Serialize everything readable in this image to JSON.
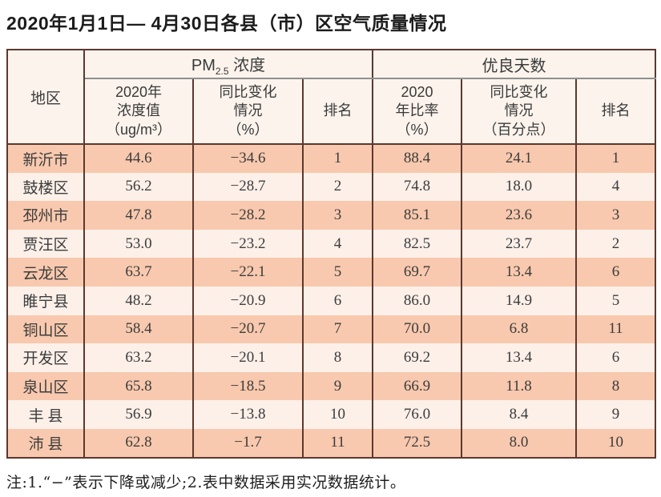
{
  "page": {
    "title": "2020年1月1日— 4月30日各县（市）区空气质量情况",
    "note": "注:1.“−”表示下降或减少;2.表中数据采用实况数据统计。"
  },
  "table": {
    "corner_header": "地区",
    "group_pm25": {
      "base": "PM",
      "sub": "2.5",
      "rest": " 浓度"
    },
    "group_good_days": "优良天数",
    "subheaders": {
      "pm_value": "2020年\n浓度值\n（ug/m³）",
      "pm_change": "同比变化\n情况\n（%）",
      "pm_rank": "排名",
      "good_rate": "2020\n年比率\n（%）",
      "good_change": "同比变化\n情况\n（百分点）",
      "good_rank": "排名"
    },
    "rows": [
      {
        "region": "新沂市",
        "pm_value": "44.6",
        "pm_change": "−34.6",
        "pm_rank": "1",
        "good_rate": "88.4",
        "good_change": "24.1",
        "good_rank": "1"
      },
      {
        "region": "鼓楼区",
        "pm_value": "56.2",
        "pm_change": "−28.7",
        "pm_rank": "2",
        "good_rate": "74.8",
        "good_change": "18.0",
        "good_rank": "4"
      },
      {
        "region": "邳州市",
        "pm_value": "47.8",
        "pm_change": "−28.2",
        "pm_rank": "3",
        "good_rate": "85.1",
        "good_change": "23.6",
        "good_rank": "3"
      },
      {
        "region": "贾汪区",
        "pm_value": "53.0",
        "pm_change": "−23.2",
        "pm_rank": "4",
        "good_rate": "82.5",
        "good_change": "23.7",
        "good_rank": "2"
      },
      {
        "region": "云龙区",
        "pm_value": "63.7",
        "pm_change": "−22.1",
        "pm_rank": "5",
        "good_rate": "69.7",
        "good_change": "13.4",
        "good_rank": "6"
      },
      {
        "region": "睢宁县",
        "pm_value": "48.2",
        "pm_change": "−20.9",
        "pm_rank": "6",
        "good_rate": "86.0",
        "good_change": "14.9",
        "good_rank": "5"
      },
      {
        "region": "铜山区",
        "pm_value": "58.4",
        "pm_change": "−20.7",
        "pm_rank": "7",
        "good_rate": "70.0",
        "good_change": "6.8",
        "good_rank": "11"
      },
      {
        "region": "开发区",
        "pm_value": "63.2",
        "pm_change": "−20.1",
        "pm_rank": "8",
        "good_rate": "69.2",
        "good_change": "13.4",
        "good_rank": "6"
      },
      {
        "region": "泉山区",
        "pm_value": "65.8",
        "pm_change": "−18.5",
        "pm_rank": "9",
        "good_rate": "66.9",
        "good_change": "11.8",
        "good_rank": "8"
      },
      {
        "region": "丰 县",
        "pm_value": "56.9",
        "pm_change": "−13.8",
        "pm_rank": "10",
        "good_rate": "76.0",
        "good_change": "8.4",
        "good_rank": "9"
      },
      {
        "region": "沛 县",
        "pm_value": "62.8",
        "pm_change": "−1.7",
        "pm_rank": "11",
        "good_rate": "72.5",
        "good_change": "8.0",
        "good_rank": "10"
      }
    ]
  },
  "colors": {
    "border": "#5d382e",
    "grayLine": "#8f8f8f",
    "rowOdd": "#f8c9ae",
    "rowEven": "#fcf0e9",
    "headerBg": "#fbf3ec",
    "pageBg": "#ffffff"
  },
  "chart_data": {
    "type": "table",
    "title": "2020年1月1日— 4月30日各县（市）区空气质量情况",
    "columns": [
      "地区",
      "PM2.5浓度 2020年浓度值（ug/m³）",
      "PM2.5浓度 同比变化情况（%）",
      "PM2.5浓度 排名",
      "优良天数 2020年比率（%）",
      "优良天数 同比变化情况（百分点）",
      "优良天数 排名"
    ],
    "rows": [
      [
        "新沂市",
        44.6,
        -34.6,
        1,
        88.4,
        24.1,
        1
      ],
      [
        "鼓楼区",
        56.2,
        -28.7,
        2,
        74.8,
        18.0,
        4
      ],
      [
        "邳州市",
        47.8,
        -28.2,
        3,
        85.1,
        23.6,
        3
      ],
      [
        "贾汪区",
        53.0,
        -23.2,
        4,
        82.5,
        23.7,
        2
      ],
      [
        "云龙区",
        63.7,
        -22.1,
        5,
        69.7,
        13.4,
        6
      ],
      [
        "睢宁县",
        48.2,
        -20.9,
        6,
        86.0,
        14.9,
        5
      ],
      [
        "铜山区",
        58.4,
        -20.7,
        7,
        70.0,
        6.8,
        11
      ],
      [
        "开发区",
        63.2,
        -20.1,
        8,
        69.2,
        13.4,
        6
      ],
      [
        "泉山区",
        65.8,
        -18.5,
        9,
        66.9,
        11.8,
        8
      ],
      [
        "丰县",
        56.9,
        -13.8,
        10,
        76.0,
        8.4,
        9
      ],
      [
        "沛县",
        62.8,
        -1.7,
        11,
        72.5,
        8.0,
        10
      ]
    ],
    "footnote": "注:1.“−”表示下降或减少;2.表中数据采用实况数据统计。"
  }
}
